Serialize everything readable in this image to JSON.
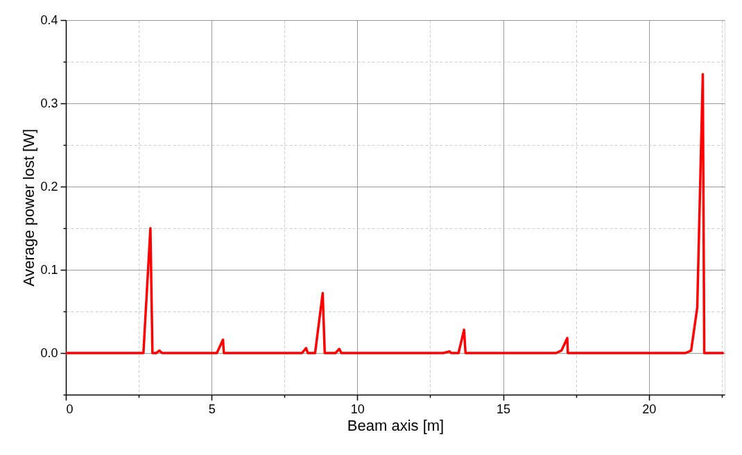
{
  "chart_data": {
    "type": "line",
    "xlabel": "Beam axis [m]",
    "ylabel": "Average power lost [W]",
    "x": [
      0,
      2.66,
      2.9,
      2.97,
      3.1,
      3.21,
      3.3,
      5.18,
      5.39,
      5.42,
      8.1,
      8.24,
      8.3,
      8.55,
      8.81,
      8.88,
      9.25,
      9.38,
      9.45,
      12.95,
      13.16,
      13.22,
      13.47,
      13.66,
      13.71,
      16.82,
      17.0,
      17.2,
      17.22,
      21.26,
      21.45,
      21.6,
      21.66,
      21.85,
      21.9,
      22.1,
      22.57
    ],
    "series": [
      {
        "color": "#ff0000",
        "values": [
          0,
          0,
          0.15,
          0,
          0,
          0.003,
          0,
          0,
          0.016,
          0,
          0,
          0.006,
          0,
          0,
          0.072,
          0,
          0,
          0.005,
          0,
          0,
          0.002,
          0,
          0,
          0.028,
          0,
          0,
          0.003,
          0.018,
          0,
          0,
          0.003,
          0.04,
          0.055,
          0.335,
          0,
          0,
          0
        ]
      }
    ],
    "xlim": [
      0,
      22.6
    ],
    "ylim": [
      -0.05,
      0.4
    ],
    "xticks": [
      0,
      {
        "value": 2.5,
        "label": null
      },
      5,
      {
        "value": 7.5,
        "label": null
      },
      10,
      {
        "value": 12.5,
        "label": null
      },
      15,
      {
        "value": 17.5,
        "label": null
      },
      20,
      {
        "value": 22.5,
        "label": null
      }
    ],
    "yticks": [
      {
        "value": -0.05,
        "label": null
      },
      {
        "value": 0,
        "label": "0.0"
      },
      {
        "value": 0.05,
        "label": null
      },
      0.1,
      {
        "value": 0.15,
        "label": null
      },
      0.2,
      {
        "value": 0.25,
        "label": null
      },
      0.3,
      {
        "value": 0.35,
        "label": null
      },
      0.4
    ],
    "grid": true,
    "marker": "none",
    "line_style": "solid"
  }
}
